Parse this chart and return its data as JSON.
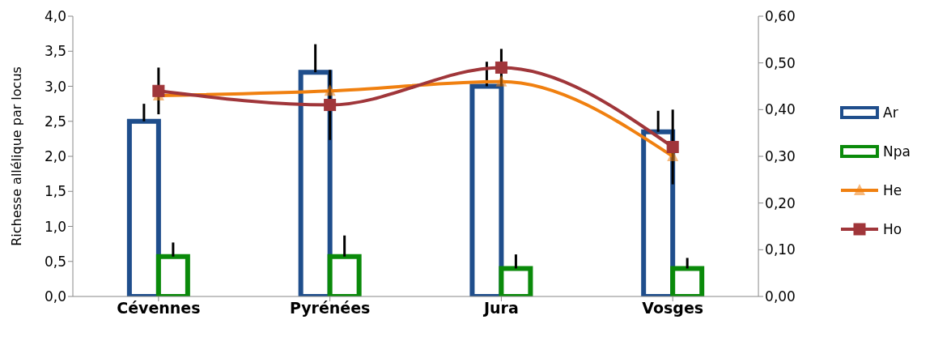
{
  "chart_data": {
    "type": "bar",
    "ylabel": "Richesse allélique  par locus",
    "categories": [
      "Cévennes",
      "Pyrénées",
      "Jura",
      "Vosges"
    ],
    "series": [
      {
        "name": "Ar",
        "color": "#1f4e8c",
        "values": [
          2.5,
          3.2,
          3.0,
          2.35
        ],
        "errors": [
          [
            2.5,
            2.75
          ],
          [
            3.2,
            3.6
          ],
          [
            3.0,
            3.35
          ],
          [
            2.35,
            2.65
          ]
        ]
      },
      {
        "name": "Npa",
        "color": "#0a8a0a",
        "values": [
          0.57,
          0.57,
          0.4,
          0.4
        ],
        "errors": [
          [
            0.57,
            0.77
          ],
          [
            0.57,
            0.87
          ],
          [
            0.4,
            0.6
          ],
          [
            0.4,
            0.55
          ]
        ]
      },
      {
        "name": "He",
        "type": "line",
        "axis": "y2",
        "color": "#f08010",
        "marker": "triangle",
        "values": [
          0.43,
          0.44,
          0.46,
          0.3
        ]
      },
      {
        "name": "Ho",
        "type": "line",
        "axis": "y2",
        "color": "#a0363a",
        "marker": "square",
        "values": [
          0.44,
          0.41,
          0.49,
          0.32
        ],
        "errors": [
          0.05,
          0.075,
          0.04,
          0.08
        ]
      }
    ],
    "ylim": [
      0,
      4
    ],
    "yticks": [
      {
        "value": 0,
        "label": "0,0"
      },
      {
        "value": 0.5,
        "label": "0,5"
      },
      {
        "value": 1,
        "label": "1,0"
      },
      {
        "value": 1.5,
        "label": "1,5"
      },
      {
        "value": 2,
        "label": "2,0"
      },
      {
        "value": 2.5,
        "label": "2,5"
      },
      {
        "value": 3,
        "label": "3,0"
      },
      {
        "value": 3.5,
        "label": "3,5"
      },
      {
        "value": 4,
        "label": "4,0"
      }
    ],
    "y2lim": [
      0,
      0.6
    ],
    "y2ticks": [
      {
        "value": 0,
        "label": "0,00"
      },
      {
        "value": 0.1,
        "label": "0,10"
      },
      {
        "value": 0.2,
        "label": "0,20"
      },
      {
        "value": 0.3,
        "label": "0,30"
      },
      {
        "value": 0.4,
        "label": "0,40"
      },
      {
        "value": 0.5,
        "label": "0,50"
      },
      {
        "value": 0.6,
        "label": "0,60"
      }
    ],
    "grid": false,
    "legend": "right"
  }
}
